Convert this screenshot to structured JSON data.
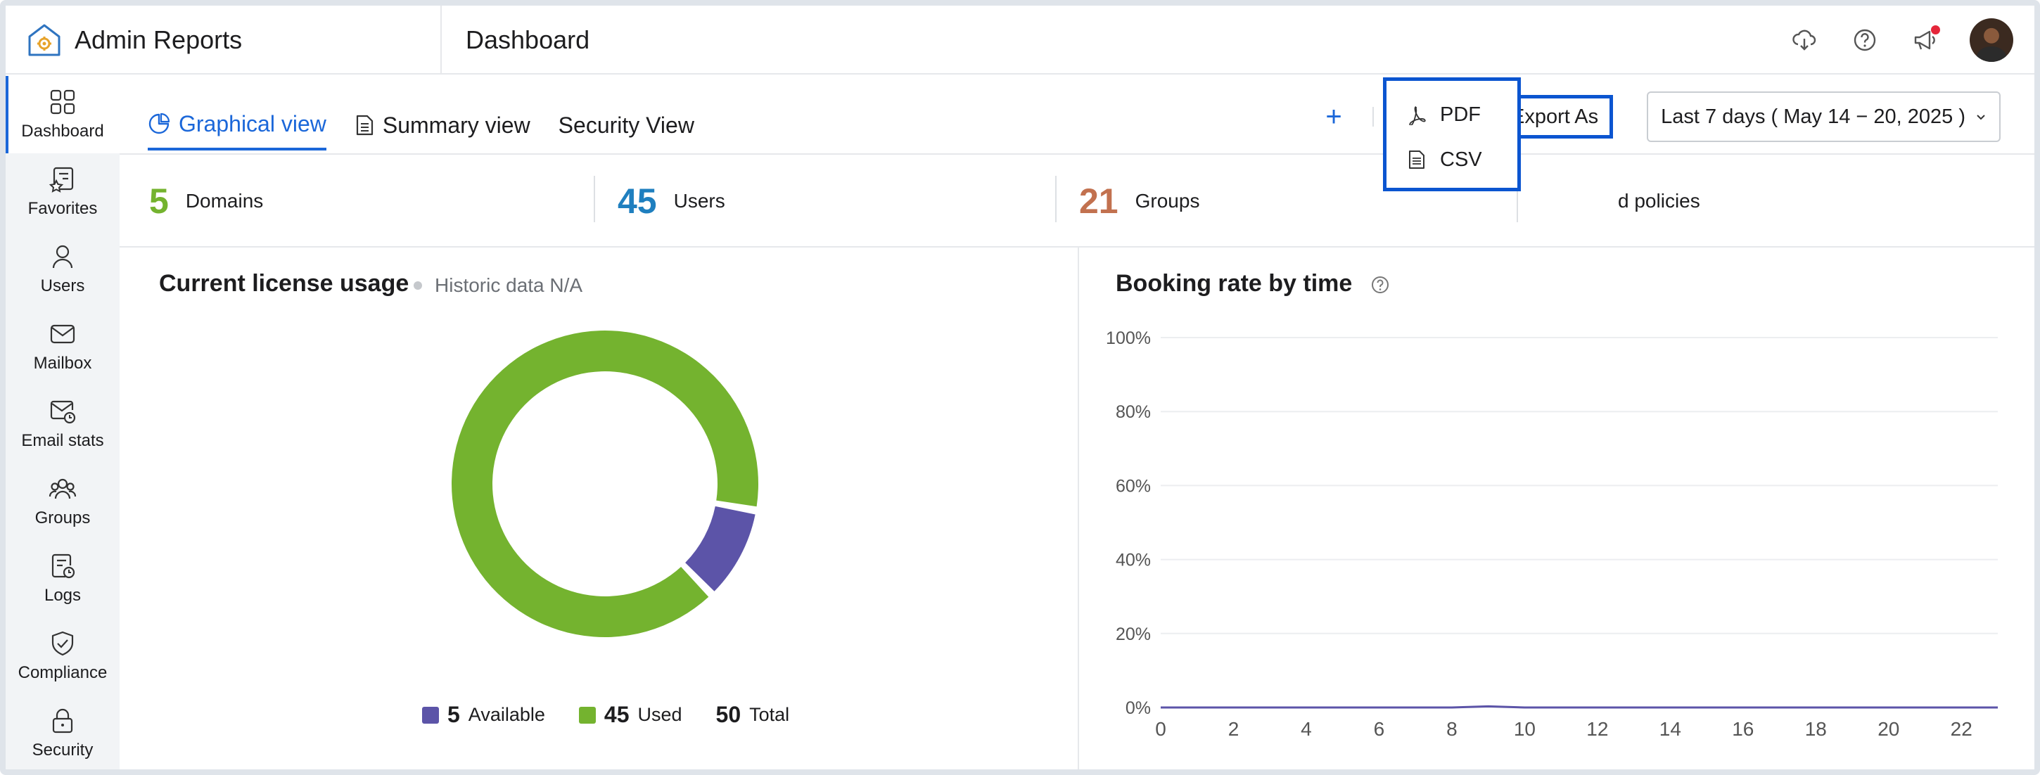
{
  "app": {
    "title": "Admin Reports",
    "page_title": "Dashboard"
  },
  "header": {
    "icons": [
      "cloud-download-icon",
      "help-icon",
      "announcement-icon",
      "avatar"
    ]
  },
  "sidebar": {
    "items": [
      {
        "label": "Dashboard",
        "icon": "grid-icon",
        "active": true
      },
      {
        "label": "Favorites",
        "icon": "star-list-icon"
      },
      {
        "label": "Users",
        "icon": "user-icon"
      },
      {
        "label": "Mailbox",
        "icon": "mail-icon"
      },
      {
        "label": "Email stats",
        "icon": "mail-clock-icon"
      },
      {
        "label": "Groups",
        "icon": "group-icon"
      },
      {
        "label": "Logs",
        "icon": "log-icon"
      },
      {
        "label": "Compliance",
        "icon": "shield-check-icon"
      },
      {
        "label": "Security",
        "icon": "lock-icon"
      }
    ]
  },
  "tabs": [
    {
      "label": "Graphical view",
      "icon": "pie-icon",
      "active": true
    },
    {
      "label": "Summary view",
      "icon": "document-icon"
    },
    {
      "label": "Security View"
    }
  ],
  "toolbar": {
    "plus": "+",
    "export_label": "Export As",
    "date_range": "Last 7 days ( May 14 − 20, 2025 )"
  },
  "export_menu": {
    "items": [
      {
        "label": "PDF",
        "icon": "pdf-icon"
      },
      {
        "label": "CSV",
        "icon": "csv-icon"
      }
    ]
  },
  "stats": [
    {
      "value": "5",
      "label": "Domains",
      "color": "#74b32f"
    },
    {
      "value": "45",
      "label": "Users",
      "color": "#1f7fbf"
    },
    {
      "value": "21",
      "label": "Groups",
      "color": "#c2714f"
    },
    {
      "label_partial": "d policies"
    }
  ],
  "license": {
    "title": "Current license usage",
    "subtitle": "Historic data N/A",
    "available": {
      "value": "5",
      "label": "Available",
      "color": "#5c54a8"
    },
    "used": {
      "value": "45",
      "label": "Used",
      "color": "#74b32f"
    },
    "total": {
      "value": "50",
      "label": "Total"
    }
  },
  "booking": {
    "title": "Booking rate by time"
  },
  "chart_data": [
    {
      "type": "pie",
      "title": "Current license usage",
      "labels": [
        "Available",
        "Used"
      ],
      "values": [
        5,
        45
      ],
      "colors": [
        "#5c54a8",
        "#74b32f"
      ]
    },
    {
      "type": "area",
      "title": "Booking rate by time",
      "x": [
        0,
        1,
        2,
        3,
        4,
        5,
        6,
        7,
        8,
        9,
        10,
        11,
        12,
        13,
        14,
        15,
        16,
        17,
        18,
        19,
        20,
        21,
        22,
        23
      ],
      "series": [
        {
          "values": [
            0,
            0,
            0,
            0,
            0,
            0,
            0,
            0,
            0,
            0.3,
            0,
            0,
            0,
            0,
            0,
            0,
            0,
            0,
            0,
            0,
            0,
            0,
            0,
            0
          ],
          "color": "#5c54a8"
        }
      ],
      "x_ticks": [
        "0",
        "2",
        "4",
        "6",
        "8",
        "10",
        "12",
        "14",
        "16",
        "18",
        "20",
        "22"
      ],
      "y_ticks": [
        "0%",
        "20%",
        "40%",
        "60%",
        "80%",
        "100%"
      ],
      "ylim": [
        0,
        100
      ],
      "grid": true
    }
  ]
}
